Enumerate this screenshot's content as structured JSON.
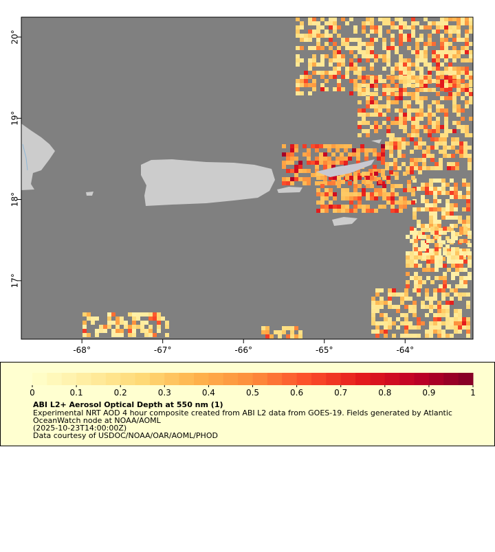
{
  "map": {
    "lon_ticks": [
      {
        "value": -68,
        "label": "-68°"
      },
      {
        "value": -67,
        "label": "-67°"
      },
      {
        "value": -66,
        "label": "-66°"
      },
      {
        "value": -65,
        "label": "-65°"
      },
      {
        "value": -64,
        "label": "-64°"
      }
    ],
    "lat_ticks": [
      {
        "value": 17,
        "label": "17°"
      },
      {
        "value": 18,
        "label": "18°"
      },
      {
        "value": 19,
        "label": "19°"
      },
      {
        "value": 20,
        "label": "20°"
      }
    ],
    "xlim": [
      -68.75,
      -63.16
    ],
    "ylim": [
      16.28,
      20.245
    ]
  },
  "colorbar": {
    "ticks": [
      0,
      0.1,
      0.2,
      0.3,
      0.4,
      0.5,
      0.6,
      0.7,
      0.8,
      0.9,
      1
    ],
    "lim": [
      0,
      1
    ],
    "colors": [
      "#ffffcc",
      "#ffeda0",
      "#fed976",
      "#feb24c",
      "#fd8d3c",
      "#fc4e2a",
      "#e31a1c",
      "#bd0026",
      "#800026"
    ]
  },
  "caption": {
    "title": "ABI L2+ Aerosol Optical Depth at 550 nm (1)",
    "line1": "Experimental NRT AOD 4 hour composite created from ABI L2 data from GOES-19. Fields generated by Atlantic",
    "line2": "OceanWatch node at NOAA/AOML",
    "line3": "(2025-10-23T14:00:00Z)",
    "line4": "Data courtesy of USDOC/NOAA/OAR/AOML/PHOD"
  }
}
